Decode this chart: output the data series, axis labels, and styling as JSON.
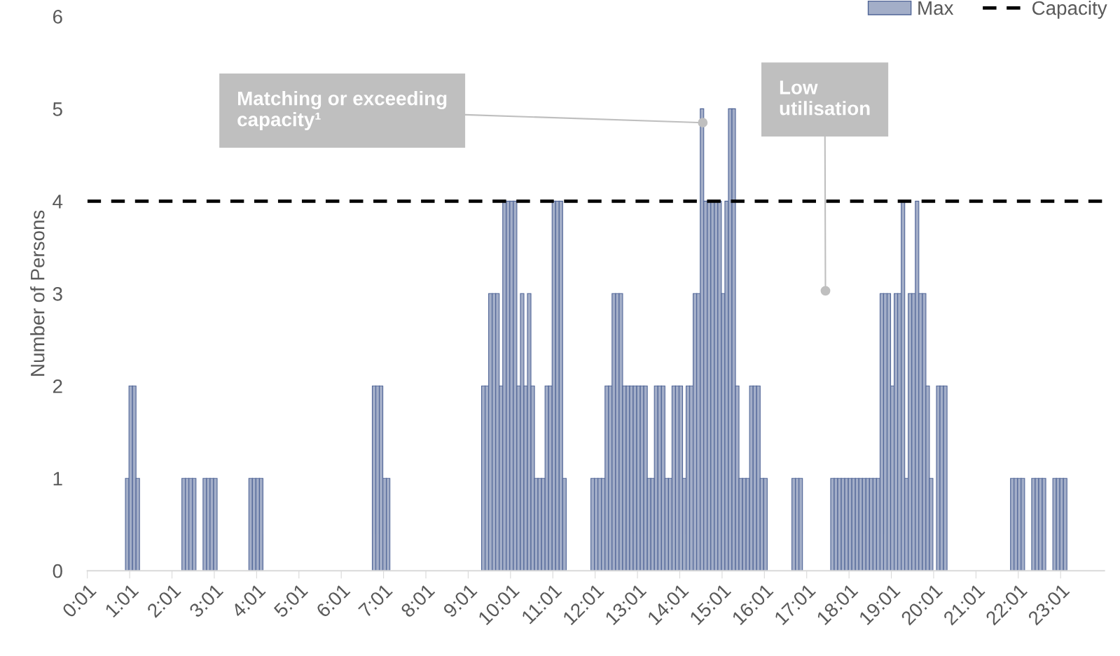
{
  "chart_data": {
    "type": "bar",
    "ylabel": "Number of Persons",
    "x": [
      0.958,
      1.042,
      1.125,
      1.208,
      2.292,
      2.375,
      2.458,
      2.542,
      2.792,
      2.875,
      2.958,
      3.042,
      3.875,
      3.958,
      4.042,
      4.125,
      6.792,
      6.875,
      6.958,
      7.042,
      7.125,
      9.375,
      9.458,
      9.542,
      9.625,
      9.708,
      9.792,
      9.875,
      9.958,
      10.042,
      10.125,
      10.208,
      10.292,
      10.375,
      10.458,
      10.542,
      10.625,
      10.708,
      10.792,
      10.875,
      10.958,
      11.042,
      11.125,
      11.208,
      11.292,
      11.958,
      12.042,
      12.125,
      12.208,
      12.292,
      12.375,
      12.458,
      12.542,
      12.625,
      12.708,
      12.792,
      12.875,
      12.958,
      13.042,
      13.125,
      13.208,
      13.292,
      13.375,
      13.458,
      13.542,
      13.625,
      13.708,
      13.792,
      13.875,
      13.958,
      14.042,
      14.125,
      14.208,
      14.292,
      14.375,
      14.458,
      14.542,
      14.625,
      14.708,
      14.792,
      14.875,
      14.958,
      15.042,
      15.125,
      15.208,
      15.292,
      15.375,
      15.458,
      15.542,
      15.625,
      15.708,
      15.792,
      15.875,
      15.958,
      16.042,
      16.708,
      16.792,
      16.875,
      17.625,
      17.708,
      17.792,
      17.875,
      17.958,
      18.042,
      18.125,
      18.208,
      18.292,
      18.375,
      18.458,
      18.542,
      18.625,
      18.708,
      18.792,
      18.875,
      18.958,
      19.042,
      19.125,
      19.208,
      19.292,
      19.375,
      19.458,
      19.542,
      19.625,
      19.708,
      19.792,
      19.875,
      19.958,
      20.125,
      20.208,
      20.292,
      21.875,
      21.958,
      22.042,
      22.125,
      22.375,
      22.458,
      22.542,
      22.625,
      22.875,
      22.958,
      23.042,
      23.125
    ],
    "series": [
      {
        "name": "Max",
        "color": "#a3aec8",
        "values": [
          1,
          2,
          2,
          1,
          1,
          1,
          1,
          1,
          1,
          1,
          1,
          1,
          1,
          1,
          1,
          1,
          2,
          2,
          2,
          1,
          1,
          2,
          2,
          3,
          3,
          3,
          2,
          4,
          4,
          4,
          4,
          2,
          3,
          2,
          3,
          2,
          1,
          1,
          1,
          2,
          2,
          4,
          4,
          4,
          1,
          1,
          1,
          1,
          1,
          2,
          2,
          3,
          3,
          3,
          2,
          2,
          2,
          2,
          2,
          2,
          2,
          1,
          1,
          2,
          2,
          2,
          1,
          1,
          2,
          2,
          2,
          1,
          2,
          2,
          3,
          3,
          5,
          4,
          4,
          4,
          4,
          4,
          3,
          4,
          5,
          5,
          2,
          1,
          1,
          1,
          2,
          2,
          2,
          1,
          1,
          1,
          1,
          1,
          1,
          1,
          1,
          1,
          1,
          1,
          1,
          1,
          1,
          1,
          1,
          1,
          1,
          1,
          3,
          3,
          3,
          2,
          3,
          3,
          4,
          1,
          3,
          3,
          4,
          3,
          3,
          2,
          1,
          2,
          2,
          2,
          1,
          1,
          1,
          1,
          1,
          1,
          1,
          1,
          1,
          1,
          1,
          1
        ]
      }
    ],
    "xlim": [
      0.0167,
      24.05
    ],
    "xticks": [
      {
        "value": 0.0167,
        "label": "0:01"
      },
      {
        "value": 1.0167,
        "label": "1:01"
      },
      {
        "value": 2.0167,
        "label": "2:01"
      },
      {
        "value": 3.0167,
        "label": "3:01"
      },
      {
        "value": 4.0167,
        "label": "4:01"
      },
      {
        "value": 5.0167,
        "label": "5:01"
      },
      {
        "value": 6.0167,
        "label": "6:01"
      },
      {
        "value": 7.0167,
        "label": "7:01"
      },
      {
        "value": 8.0167,
        "label": "8:01"
      },
      {
        "value": 9.0167,
        "label": "9:01"
      },
      {
        "value": 10.0167,
        "label": "10:01"
      },
      {
        "value": 11.0167,
        "label": "11:01"
      },
      {
        "value": 12.0167,
        "label": "12:01"
      },
      {
        "value": 13.0167,
        "label": "13:01"
      },
      {
        "value": 14.0167,
        "label": "14:01"
      },
      {
        "value": 15.0167,
        "label": "15:01"
      },
      {
        "value": 16.0167,
        "label": "16:01"
      },
      {
        "value": 17.0167,
        "label": "17:01"
      },
      {
        "value": 18.0167,
        "label": "18:01"
      },
      {
        "value": 19.0167,
        "label": "19:01"
      },
      {
        "value": 20.0167,
        "label": "20:01"
      },
      {
        "value": 21.0167,
        "label": "21:01"
      },
      {
        "value": 22.0167,
        "label": "22:01"
      },
      {
        "value": 23.0167,
        "label": "23:01"
      }
    ],
    "ylim": [
      0,
      6
    ],
    "yticks": [
      0,
      1,
      2,
      3,
      4,
      5,
      6
    ],
    "grid": false,
    "legend": "top right",
    "ref_lines": [
      {
        "axis": "y",
        "value": 4,
        "label": "Capacity",
        "color": "#000000",
        "line_style": "dashed"
      }
    ],
    "annotations": [
      {
        "text": "Matching or exceeding\ncapacity¹",
        "x": 14.56,
        "y": 4.85
      },
      {
        "text": "Low\nutilisation",
        "x": 17.46,
        "y": 3.03
      }
    ]
  }
}
